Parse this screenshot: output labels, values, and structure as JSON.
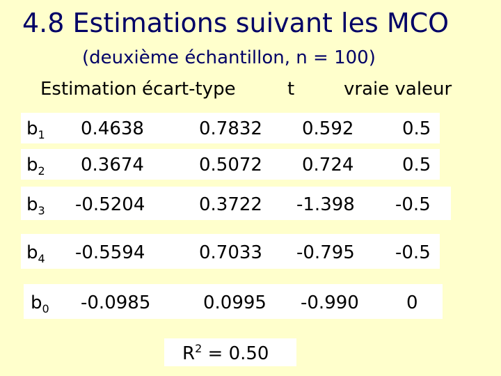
{
  "title": "4.8 Estimations suivant les MCO",
  "subtitle": "(deuxième échantillon, n = 100)",
  "headers": {
    "estimation": "Estimation",
    "ecart_type": "écart-type",
    "t": "t",
    "vraie_valeur": "vraie valeur"
  },
  "rows": [
    {
      "coef": "b",
      "sub": "1",
      "estimation": "0.4638",
      "ecart_type": "0.7832",
      "t": "0.592",
      "vraie_valeur": "0.5"
    },
    {
      "coef": "b",
      "sub": "2",
      "estimation": "0.3674",
      "ecart_type": "0.5072",
      "t": "0.724",
      "vraie_valeur": "0.5"
    },
    {
      "coef": "b",
      "sub": "3",
      "estimation": "-0.5204",
      "ecart_type": "0.3722",
      "t": "-1.398",
      "vraie_valeur": "-0.5"
    },
    {
      "coef": "b",
      "sub": "4",
      "estimation": "-0.5594",
      "ecart_type": "0.7033",
      "t": "-0.795",
      "vraie_valeur": "-0.5"
    },
    {
      "coef": "b",
      "sub": "0",
      "estimation": "-0.0985",
      "ecart_type": "0.0995",
      "t": "-0.990",
      "vraie_valeur": "0"
    }
  ],
  "r_squared": {
    "label": "R",
    "sup": "2",
    "value": "= 0.50"
  },
  "colors": {
    "background": "#ffffcc",
    "title": "#000066",
    "cell_background": "#ffffff"
  }
}
